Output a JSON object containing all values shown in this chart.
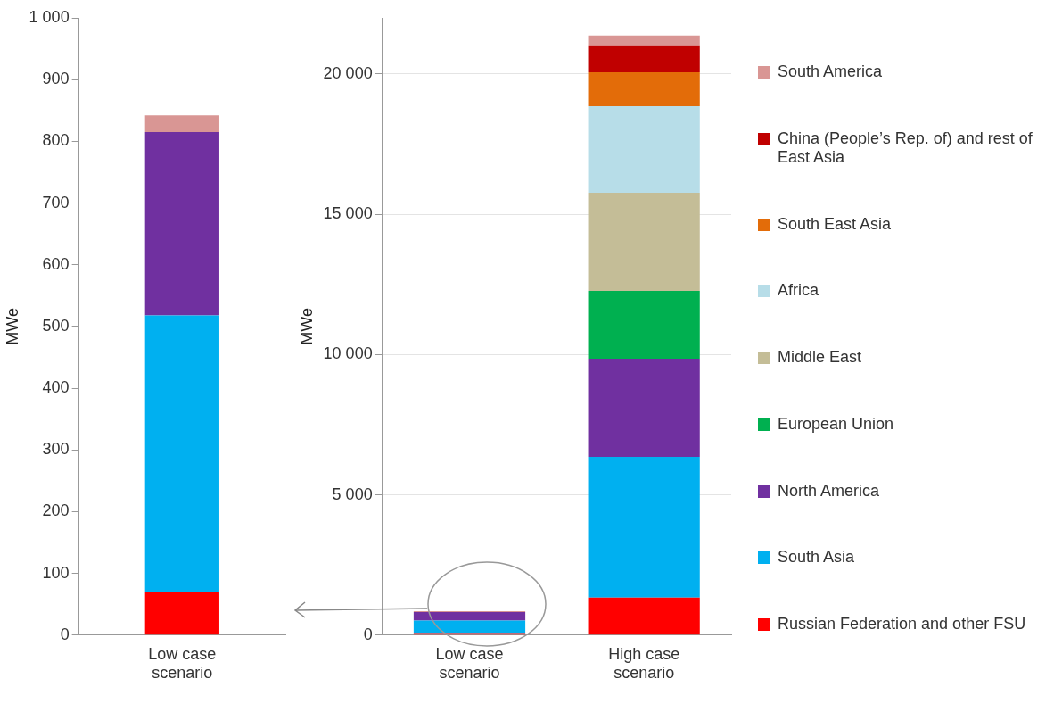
{
  "chart_data": [
    {
      "type": "bar",
      "stacked": true,
      "categories": [
        "Low case scenario"
      ],
      "ylabel": "MWe",
      "ylim": [
        0,
        1000
      ],
      "yticks": [
        0,
        100,
        200,
        300,
        400,
        500,
        600,
        700,
        800,
        900,
        {
          "value": 1000,
          "label": "1 000"
        }
      ],
      "grid": false,
      "legend": false,
      "series": [
        {
          "color": "#ff0000",
          "values": [
            70
          ]
        },
        {
          "color": "#00b0f0",
          "values": [
            448
          ]
        },
        {
          "color": "#7030a0",
          "values": [
            297
          ]
        },
        {
          "color": "#d99694",
          "values": [
            27
          ]
        }
      ]
    },
    {
      "type": "bar",
      "stacked": true,
      "categories": [
        "Low case scenario",
        "High case scenario"
      ],
      "ylabel": "MWe",
      "ylim": [
        0,
        22000
      ],
      "yticks": [
        0,
        {
          "value": 5000,
          "label": "5 000"
        },
        {
          "value": 10000,
          "label": "10 000"
        },
        {
          "value": 15000,
          "label": "15 000"
        },
        {
          "value": 20000,
          "label": "20 000"
        }
      ],
      "grid": "y",
      "legend": "right",
      "series": [
        {
          "name": "Russian Federation and other FSU",
          "color": "#ff0000",
          "values": [
            70,
            1340
          ]
        },
        {
          "name": "South Asia",
          "color": "#00b0f0",
          "values": [
            450,
            5010
          ]
        },
        {
          "name": "North America",
          "color": "#7030a0",
          "values": [
            300,
            3500
          ]
        },
        {
          "name": "European Union",
          "color": "#00b050",
          "values": [
            0,
            2420
          ]
        },
        {
          "name": "Middle East",
          "color": "#c4bd97",
          "values": [
            0,
            3500
          ]
        },
        {
          "name": "Africa",
          "color": "#b7dde8",
          "values": [
            0,
            3080
          ]
        },
        {
          "name": "South East Asia",
          "color": "#e36c09",
          "values": [
            0,
            1210
          ]
        },
        {
          "name": "China (People’s Rep. of) and rest of East Asia",
          "color": "#c00000",
          "values": [
            0,
            960
          ]
        },
        {
          "name": "South America",
          "color": "#d99694",
          "values": [
            30,
            350
          ]
        }
      ]
    }
  ]
}
